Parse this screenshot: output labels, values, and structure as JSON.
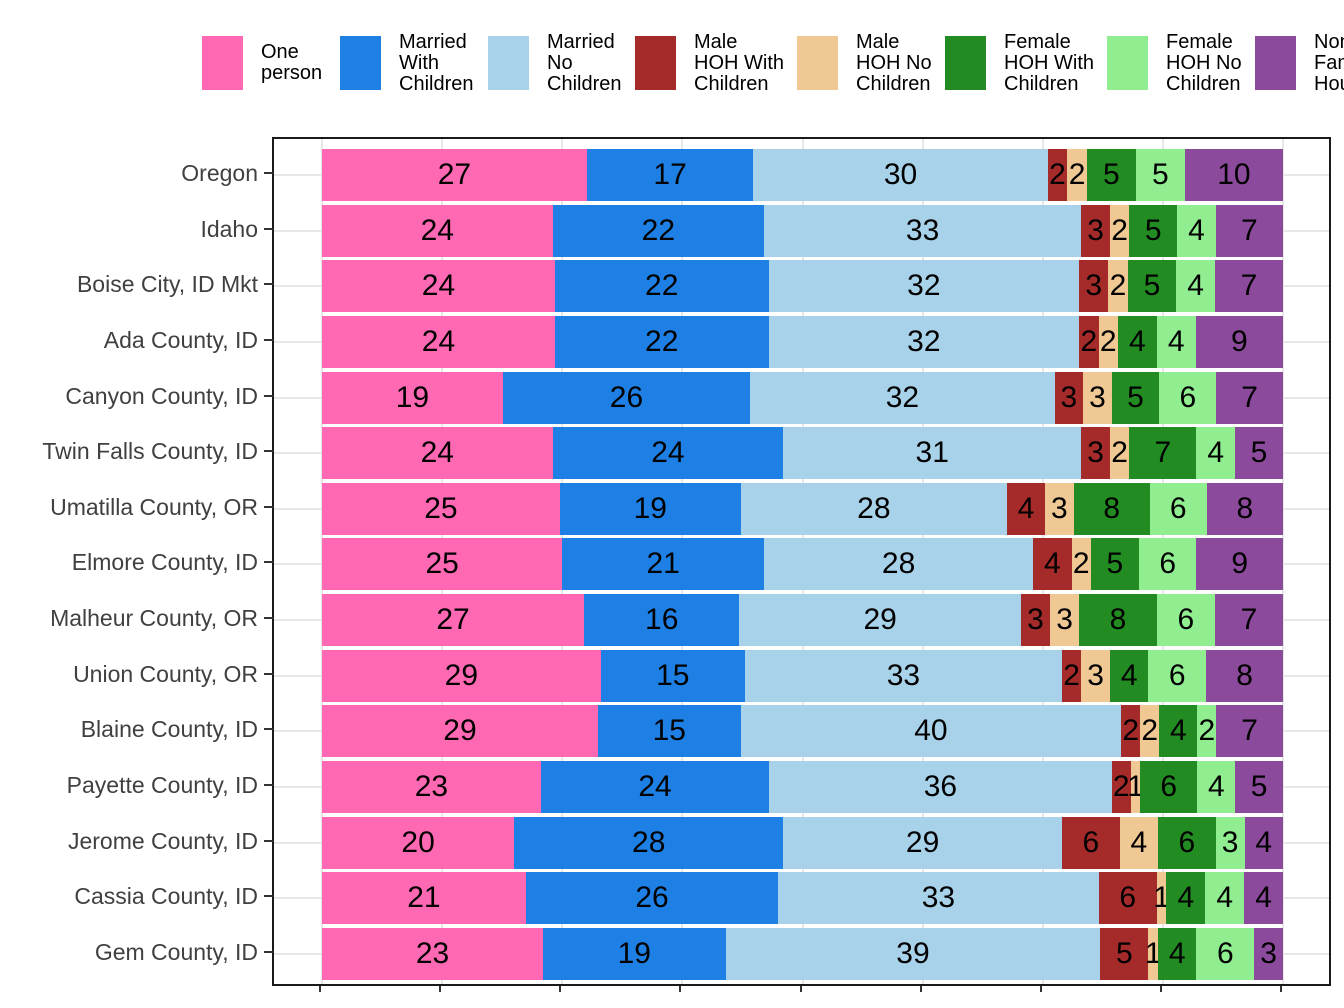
{
  "chart_data": {
    "type": "bar",
    "orientation": "horizontal",
    "stacked": true,
    "normalized_to_100": true,
    "legend_position": "top",
    "value_labels_on_segments": true,
    "x_axis": {
      "min": 0,
      "max": 100,
      "tick_labels_visible": false,
      "gridlines_pct": [
        0,
        12.5,
        25,
        37.5,
        50,
        62.5,
        75,
        87.5,
        100
      ]
    },
    "categories": [
      "Oregon",
      "Idaho",
      "Boise City, ID Mkt",
      "Ada County, ID",
      "Canyon County, ID",
      "Twin Falls County, ID",
      "Umatilla County, OR",
      "Elmore County, ID",
      "Malheur County, OR",
      "Union County, OR",
      "Blaine County, ID",
      "Payette County, ID",
      "Jerome County, ID",
      "Cassia County, ID",
      "Gem County, ID"
    ],
    "series": [
      {
        "name": "One person",
        "label_lines": [
          "One",
          "person"
        ],
        "color": "#FF69B4",
        "values": [
          27,
          24,
          24,
          24,
          19,
          24,
          25,
          25,
          27,
          29,
          29,
          23,
          20,
          21,
          23
        ]
      },
      {
        "name": "Married With Children",
        "label_lines": [
          "Married",
          "With",
          "Children"
        ],
        "color": "#1E80E4",
        "values": [
          17,
          22,
          22,
          22,
          26,
          24,
          19,
          21,
          16,
          15,
          15,
          24,
          28,
          26,
          19
        ]
      },
      {
        "name": "Married No Children",
        "label_lines": [
          "Married",
          "No",
          "Children"
        ],
        "color": "#A8D2EA",
        "values": [
          30,
          33,
          32,
          32,
          32,
          31,
          28,
          28,
          29,
          33,
          40,
          36,
          29,
          33,
          39
        ]
      },
      {
        "name": "Male HOH With Children",
        "label_lines": [
          "Male",
          "HOH With",
          "Children"
        ],
        "color": "#A52A2A",
        "values": [
          2,
          3,
          3,
          2,
          3,
          3,
          4,
          4,
          3,
          2,
          2,
          2,
          6,
          6,
          5
        ]
      },
      {
        "name": "Male HOH No Children",
        "label_lines": [
          "Male",
          "HOH No",
          "Children"
        ],
        "color": "#EFC894",
        "values": [
          2,
          2,
          2,
          2,
          3,
          2,
          3,
          2,
          3,
          3,
          2,
          1,
          4,
          1,
          1
        ]
      },
      {
        "name": "Female HOH With Children",
        "label_lines": [
          "Female",
          "HOH With",
          "Children"
        ],
        "color": "#228B22",
        "values": [
          5,
          5,
          5,
          4,
          5,
          7,
          8,
          5,
          8,
          4,
          4,
          6,
          6,
          4,
          4
        ]
      },
      {
        "name": "Female HOH No Children",
        "label_lines": [
          "Female",
          "HOH No",
          "Children"
        ],
        "color": "#90EE90",
        "values": [
          5,
          4,
          4,
          4,
          6,
          4,
          6,
          6,
          6,
          6,
          2,
          4,
          3,
          4,
          6
        ]
      },
      {
        "name": "Non Family Household",
        "label_lines": [
          "Non",
          "Family",
          "Household"
        ],
        "color": "#8C4A9C",
        "values": [
          10,
          7,
          7,
          9,
          7,
          5,
          8,
          9,
          7,
          8,
          7,
          5,
          4,
          4,
          3
        ]
      }
    ]
  }
}
